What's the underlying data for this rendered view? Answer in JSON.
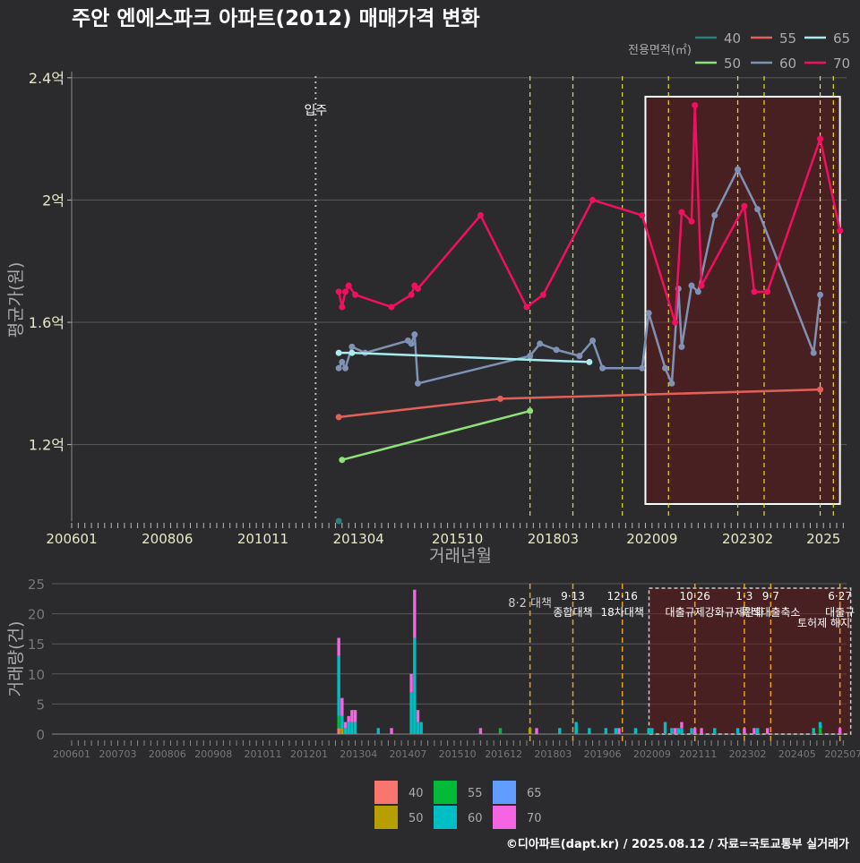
{
  "title": "주안 엔에스파크 아파트(2012) 매매가격 변화",
  "caption": "©디아파트(dapt.kr) / 2025.08.12 / 자료=국토교통부 실거래가",
  "colors": {
    "bg": "#2b2b2d",
    "grid": "#5a5a5a",
    "line": {
      "40": "#2a7f7a",
      "50": "#90e07a",
      "55": "#e0605a",
      "60": "#7f92b4",
      "65": "#a8ecf0",
      "70": "#f0105f"
    },
    "bar": {
      "40": "#f8766d",
      "50": "#b79f00",
      "55": "#00ba38",
      "60": "#00bfc4",
      "65": "#619cff",
      "70": "#f564e3"
    }
  },
  "chart_data": [
    {
      "type": "line",
      "title": "주안 엔에스파크 아파트(2012) 매매가격 변화",
      "xlabel": "거래년월",
      "ylabel": "평균가(원)",
      "x_tick_labels": [
        "200601",
        "200806",
        "201011",
        "201304",
        "201510",
        "201803",
        "202009",
        "202302",
        "2025"
      ],
      "y_ticks": [
        {
          "value": 1.2,
          "label": "1.2억"
        },
        {
          "value": 1.6,
          "label": "1.6억"
        },
        {
          "value": 2.0,
          "label": "2억"
        },
        {
          "value": 2.4,
          "label": "2.4억"
        }
      ],
      "y_unit": "억원",
      "ylim": [
        0.95,
        2.42
      ],
      "xlim": [
        "2006-01",
        "2025-08"
      ],
      "legend_title": "전용면적(㎡)",
      "legend_position": "top-right",
      "grid": true,
      "annotations": [
        {
          "x": "2012-03",
          "label": "입주",
          "style": "dotted-white"
        },
        {
          "x": "2017-08",
          "style": "dashed-yellow"
        },
        {
          "x": "2018-09",
          "style": "dashed-yellow"
        },
        {
          "x": "2019-12",
          "style": "dashed-yellow"
        },
        {
          "x": "2021-02",
          "style": "dashed-yellow"
        },
        {
          "x": "2022-11",
          "style": "dashed-yellow"
        },
        {
          "x": "2023-07",
          "style": "dashed-yellow"
        },
        {
          "x": "2024-12",
          "style": "dashed-yellow"
        },
        {
          "x": "2025-04",
          "style": "dashed-yellow"
        }
      ],
      "highlight_range": [
        "2020-07",
        "2025-06"
      ],
      "series": [
        {
          "name": "40",
          "points": [
            [
              "2012-10",
              0.95
            ]
          ]
        },
        {
          "name": "50",
          "points": [
            [
              "2012-11",
              1.15
            ],
            [
              "2017-08",
              1.31
            ]
          ]
        },
        {
          "name": "55",
          "points": [
            [
              "2012-10",
              1.29
            ],
            [
              "2016-11",
              1.35
            ],
            [
              "2024-12",
              1.38
            ]
          ]
        },
        {
          "name": "60",
          "points": [
            [
              "2012-10",
              1.45
            ],
            [
              "2012-11",
              1.47
            ],
            [
              "2012-12",
              1.45
            ],
            [
              "2013-02",
              1.52
            ],
            [
              "2013-06",
              1.5
            ],
            [
              "2014-07",
              1.54
            ],
            [
              "2014-08",
              1.53
            ],
            [
              "2014-09",
              1.56
            ],
            [
              "2014-10",
              1.4
            ],
            [
              "2017-08",
              1.49
            ],
            [
              "2017-11",
              1.53
            ],
            [
              "2018-04",
              1.51
            ],
            [
              "2018-11",
              1.49
            ],
            [
              "2019-03",
              1.54
            ],
            [
              "2019-06",
              1.45
            ],
            [
              "2020-06",
              1.45
            ],
            [
              "2020-08",
              1.63
            ],
            [
              "2021-01",
              1.45
            ],
            [
              "2021-03",
              1.4
            ],
            [
              "2021-05",
              1.71
            ],
            [
              "2021-06",
              1.52
            ],
            [
              "2021-09",
              1.72
            ],
            [
              "2021-11",
              1.7
            ],
            [
              "2022-04",
              1.95
            ],
            [
              "2022-11",
              2.1
            ],
            [
              "2023-05",
              1.97
            ],
            [
              "2024-10",
              1.5
            ],
            [
              "2024-12",
              1.69
            ]
          ]
        },
        {
          "name": "65",
          "points": [
            [
              "2012-10",
              1.5
            ],
            [
              "2013-02",
              1.5
            ],
            [
              "2019-02",
              1.47
            ]
          ]
        },
        {
          "name": "70",
          "points": [
            [
              "2012-10",
              1.7
            ],
            [
              "2012-11",
              1.65
            ],
            [
              "2012-12",
              1.7
            ],
            [
              "2013-01",
              1.72
            ],
            [
              "2013-03",
              1.69
            ],
            [
              "2014-02",
              1.65
            ],
            [
              "2014-08",
              1.69
            ],
            [
              "2014-09",
              1.72
            ],
            [
              "2014-10",
              1.71
            ],
            [
              "2016-05",
              1.95
            ],
            [
              "2017-07",
              1.65
            ],
            [
              "2017-12",
              1.69
            ],
            [
              "2019-03",
              2.0
            ],
            [
              "2020-06",
              1.95
            ],
            [
              "2021-04",
              1.6
            ],
            [
              "2021-06",
              1.96
            ],
            [
              "2021-09",
              1.93
            ],
            [
              "2021-10",
              2.31
            ],
            [
              "2021-12",
              1.72
            ],
            [
              "2023-01",
              1.98
            ],
            [
              "2023-04",
              1.7
            ],
            [
              "2023-08",
              1.7
            ],
            [
              "2024-12",
              2.2
            ],
            [
              "2025-06",
              1.9
            ]
          ]
        }
      ]
    },
    {
      "type": "bar",
      "stacked": true,
      "ylabel": "거래량(건)",
      "x_tick_labels": [
        "200601",
        "200703",
        "200806",
        "200908",
        "201011",
        "201201",
        "201304",
        "201407",
        "201510",
        "201612",
        "201803",
        "201906",
        "202009",
        "202111",
        "202302",
        "202405",
        "202507"
      ],
      "y_ticks": [
        0,
        5,
        10,
        15,
        20,
        25
      ],
      "ylim": [
        0,
        25
      ],
      "xlim": [
        "2006-01",
        "2025-08"
      ],
      "highlight_range": [
        "2020-07",
        "2025-06"
      ],
      "policy_lines": [
        {
          "x": "2017-08",
          "label": "8·2 대책"
        },
        {
          "x": "2018-09",
          "label": "9·13",
          "label2": "종합대책"
        },
        {
          "x": "2019-12",
          "label": "12·16",
          "label2": "18차대책"
        },
        {
          "x": "2021-10",
          "label": "10·26",
          "label2": "대출규제강화"
        },
        {
          "x": "2023-01",
          "label": "1·3",
          "label2": "규제완화"
        },
        {
          "x": "2023-09",
          "label": "9·7",
          "label2": "특례대출축소"
        },
        {
          "x": "2025-06",
          "label": "6·27",
          "label2": "대출규"
        }
      ],
      "extra_labels": [
        "토허제 해지"
      ],
      "series_names": [
        "40",
        "50",
        "55",
        "60",
        "65",
        "70"
      ],
      "bars": [
        {
          "x": "2012-10",
          "stack": {
            "40": 1,
            "55": 2,
            "60": 10,
            "70": 3
          }
        },
        {
          "x": "2012-11",
          "stack": {
            "50": 1,
            "60": 2,
            "70": 3
          }
        },
        {
          "x": "2012-12",
          "stack": {
            "60": 1,
            "70": 1
          }
        },
        {
          "x": "2013-01",
          "stack": {
            "60": 2,
            "70": 1
          }
        },
        {
          "x": "2013-02",
          "stack": {
            "60": 2,
            "70": 2
          }
        },
        {
          "x": "2013-03",
          "stack": {
            "60": 2,
            "70": 2
          }
        },
        {
          "x": "2013-10",
          "stack": {
            "60": 1
          }
        },
        {
          "x": "2014-02",
          "stack": {
            "70": 1
          }
        },
        {
          "x": "2014-08",
          "stack": {
            "60": 7,
            "70": 3
          }
        },
        {
          "x": "2014-09",
          "stack": {
            "60": 16,
            "70": 8
          }
        },
        {
          "x": "2014-10",
          "stack": {
            "60": 2,
            "70": 2
          }
        },
        {
          "x": "2014-11",
          "stack": {
            "60": 2
          }
        },
        {
          "x": "2016-05",
          "stack": {
            "70": 1
          }
        },
        {
          "x": "2016-11",
          "stack": {
            "55": 1
          }
        },
        {
          "x": "2017-08",
          "stack": {
            "50": 1
          }
        },
        {
          "x": "2017-10",
          "stack": {
            "70": 1
          }
        },
        {
          "x": "2018-05",
          "stack": {
            "60": 1
          }
        },
        {
          "x": "2018-10",
          "stack": {
            "60": 2
          }
        },
        {
          "x": "2019-02",
          "stack": {
            "60": 1
          }
        },
        {
          "x": "2019-07",
          "stack": {
            "60": 1
          }
        },
        {
          "x": "2019-10",
          "stack": {
            "60": 1
          }
        },
        {
          "x": "2019-11",
          "stack": {
            "70": 1
          }
        },
        {
          "x": "2020-04",
          "stack": {
            "60": 1
          }
        },
        {
          "x": "2020-08",
          "stack": {
            "60": 1
          }
        },
        {
          "x": "2020-09",
          "stack": {
            "60": 1
          }
        },
        {
          "x": "2021-01",
          "stack": {
            "60": 2
          }
        },
        {
          "x": "2021-03",
          "stack": {
            "60": 1
          }
        },
        {
          "x": "2021-04",
          "stack": {
            "70": 1
          }
        },
        {
          "x": "2021-05",
          "stack": {
            "60": 1
          }
        },
        {
          "x": "2021-06",
          "stack": {
            "60": 1,
            "70": 1
          }
        },
        {
          "x": "2021-09",
          "stack": {
            "60": 1
          }
        },
        {
          "x": "2021-10",
          "stack": {
            "70": 1
          }
        },
        {
          "x": "2021-12",
          "stack": {
            "70": 1
          }
        },
        {
          "x": "2022-04",
          "stack": {
            "60": 1
          }
        },
        {
          "x": "2022-11",
          "stack": {
            "60": 1
          }
        },
        {
          "x": "2023-01",
          "stack": {
            "70": 1
          }
        },
        {
          "x": "2023-04",
          "stack": {
            "70": 1
          }
        },
        {
          "x": "2023-05",
          "stack": {
            "60": 1
          }
        },
        {
          "x": "2023-08",
          "stack": {
            "70": 1
          }
        },
        {
          "x": "2024-10",
          "stack": {
            "60": 1
          }
        },
        {
          "x": "2024-12",
          "stack": {
            "55": 1,
            "60": 1
          }
        },
        {
          "x": "2025-06",
          "stack": {
            "70": 1
          }
        }
      ],
      "legend_position": "bottom"
    }
  ]
}
